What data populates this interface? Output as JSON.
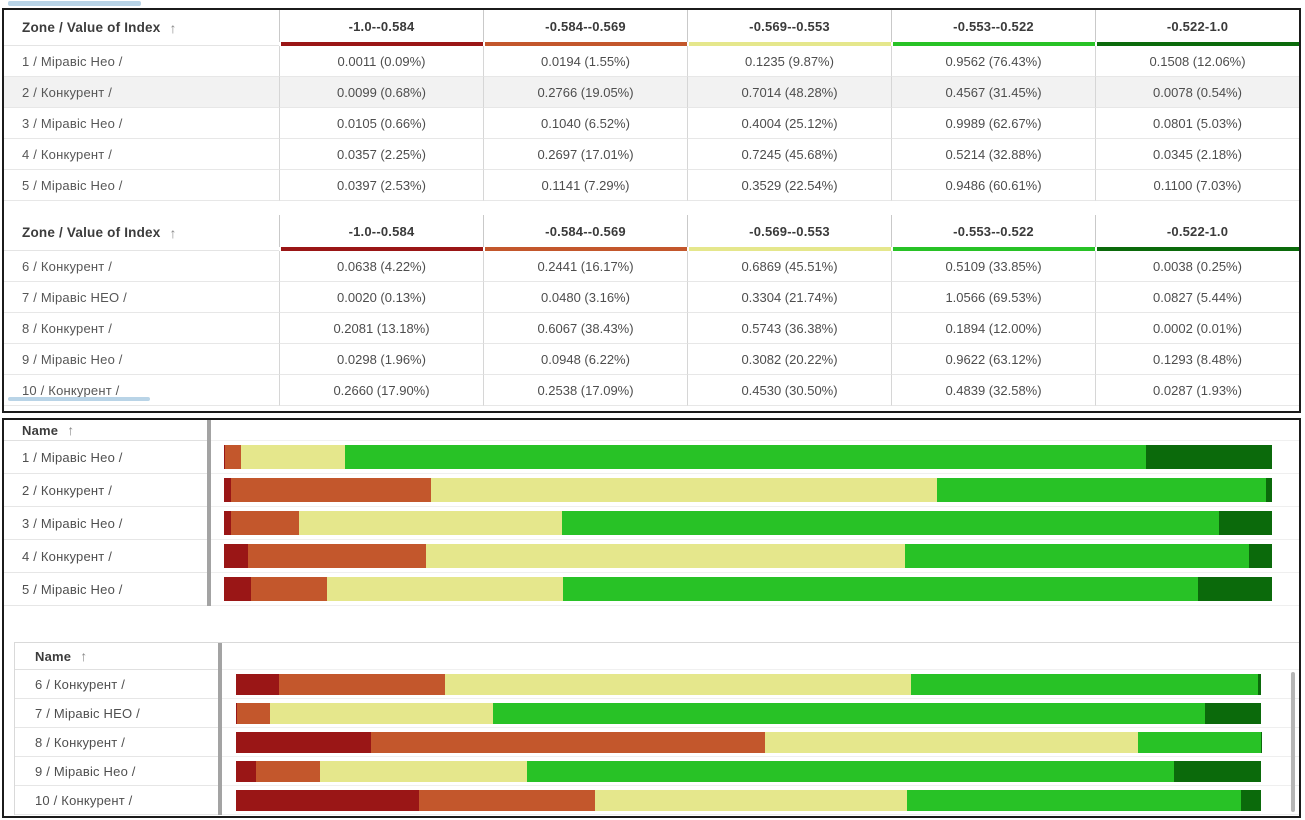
{
  "ui": {
    "sort_arrow": "↑"
  },
  "colors": {
    "panel_border": "#1b1b1b",
    "scrollbar_blue": "#b9d4e7",
    "splitter_gray": "#a3a3a3",
    "scrollbar_gray": "#b6b6b6",
    "shaded_row": "#f2f2f2"
  },
  "chart_data": {
    "type": "dashboard",
    "bins": [
      {
        "label": "-1.0--0.584",
        "color": "#9A1616"
      },
      {
        "label": "-0.584--0.569",
        "color": "#C3572C"
      },
      {
        "label": "-0.569--0.553",
        "color": "#E5E78C"
      },
      {
        "label": "-0.553--0.522",
        "color": "#28C226"
      },
      {
        "label": "-0.522-1.0",
        "color": "#0B6A0B"
      }
    ],
    "tables": [
      {
        "type": "table",
        "title": "Zone / Value of Index",
        "sort": "ascending",
        "rows": [
          {
            "name": "1 / Міравіс Нео /",
            "shaded": false,
            "cells": [
              "0.0011 (0.09%)",
              "0.0194 (1.55%)",
              "0.1235 (9.87%)",
              "0.9562 (76.43%)",
              "0.1508 (12.06%)"
            ],
            "percents": [
              0.09,
              1.55,
              9.87,
              76.43,
              12.06
            ]
          },
          {
            "name": "2 / Конкурент /",
            "shaded": true,
            "cells": [
              "0.0099 (0.68%)",
              "0.2766 (19.05%)",
              "0.7014 (48.28%)",
              "0.4567 (31.45%)",
              "0.0078 (0.54%)"
            ],
            "percents": [
              0.68,
              19.05,
              48.28,
              31.45,
              0.54
            ]
          },
          {
            "name": "3 / Міравіс Нео /",
            "shaded": false,
            "cells": [
              "0.0105 (0.66%)",
              "0.1040 (6.52%)",
              "0.4004 (25.12%)",
              "0.9989 (62.67%)",
              "0.0801 (5.03%)"
            ],
            "percents": [
              0.66,
              6.52,
              25.12,
              62.67,
              5.03
            ]
          },
          {
            "name": "4 / Конкурент /",
            "shaded": false,
            "cells": [
              "0.0357 (2.25%)",
              "0.2697 (17.01%)",
              "0.7245 (45.68%)",
              "0.5214 (32.88%)",
              "0.0345 (2.18%)"
            ],
            "percents": [
              2.25,
              17.01,
              45.68,
              32.88,
              2.18
            ]
          },
          {
            "name": "5 / Міравіс Нео /",
            "shaded": false,
            "cells": [
              "0.0397 (2.53%)",
              "0.1141 (7.29%)",
              "0.3529 (22.54%)",
              "0.9486 (60.61%)",
              "0.1100 (7.03%)"
            ],
            "percents": [
              2.53,
              7.29,
              22.54,
              60.61,
              7.03
            ]
          }
        ]
      },
      {
        "type": "table",
        "title": "Zone / Value of Index",
        "sort": "ascending",
        "rows": [
          {
            "name": "6 / Конкурент /",
            "shaded": false,
            "cells": [
              "0.0638 (4.22%)",
              "0.2441 (16.17%)",
              "0.6869 (45.51%)",
              "0.5109 (33.85%)",
              "0.0038 (0.25%)"
            ],
            "percents": [
              4.22,
              16.17,
              45.51,
              33.85,
              0.25
            ]
          },
          {
            "name": "7 / Міравіс НЕО /",
            "shaded": false,
            "cells": [
              "0.0020 (0.13%)",
              "0.0480 (3.16%)",
              "0.3304 (21.74%)",
              "1.0566 (69.53%)",
              "0.0827 (5.44%)"
            ],
            "percents": [
              0.13,
              3.16,
              21.74,
              69.53,
              5.44
            ]
          },
          {
            "name": "8 / Конкурент /",
            "shaded": false,
            "cells": [
              "0.2081 (13.18%)",
              "0.6067 (38.43%)",
              "0.5743 (36.38%)",
              "0.1894 (12.00%)",
              "0.0002 (0.01%)"
            ],
            "percents": [
              13.18,
              38.43,
              36.38,
              12.0,
              0.01
            ]
          },
          {
            "name": "9 / Міравіс Нео /",
            "shaded": false,
            "cells": [
              "0.0298 (1.96%)",
              "0.0948 (6.22%)",
              "0.3082 (20.22%)",
              "0.9622 (63.12%)",
              "0.1293 (8.48%)"
            ],
            "percents": [
              1.96,
              6.22,
              20.22,
              63.12,
              8.48
            ]
          },
          {
            "name": "10 / Конкурент /",
            "shaded": false,
            "cells": [
              "0.2660 (17.90%)",
              "0.2538 (17.09%)",
              "0.4530 (30.50%)",
              "0.4839 (32.58%)",
              "0.0287 (1.93%)"
            ],
            "percents": [
              17.9,
              17.09,
              30.5,
              32.58,
              1.93
            ]
          }
        ]
      }
    ],
    "bar_charts": [
      {
        "type": "stacked-bar-100pct",
        "title": "Name",
        "sort": "ascending",
        "rows": [
          {
            "name": "1 / Міравіс Нео /",
            "percents": [
              0.09,
              1.55,
              9.87,
              76.43,
              12.06
            ]
          },
          {
            "name": "2 / Конкурент /",
            "percents": [
              0.68,
              19.05,
              48.28,
              31.45,
              0.54
            ]
          },
          {
            "name": "3 / Міравіс Нео /",
            "percents": [
              0.66,
              6.52,
              25.12,
              62.67,
              5.03
            ]
          },
          {
            "name": "4 / Конкурент /",
            "percents": [
              2.25,
              17.01,
              45.68,
              32.88,
              2.18
            ]
          },
          {
            "name": "5 / Міравіс Нео /",
            "percents": [
              2.53,
              7.29,
              22.54,
              60.61,
              7.03
            ]
          }
        ]
      },
      {
        "type": "stacked-bar-100pct",
        "title": "Name",
        "sort": "ascending",
        "rows": [
          {
            "name": "6 / Конкурент /",
            "percents": [
              4.22,
              16.17,
              45.51,
              33.85,
              0.25
            ]
          },
          {
            "name": "7 / Міравіс НЕО /",
            "percents": [
              0.13,
              3.16,
              21.74,
              69.53,
              5.44
            ]
          },
          {
            "name": "8 / Конкурент /",
            "percents": [
              13.18,
              38.43,
              36.38,
              12.0,
              0.01
            ]
          },
          {
            "name": "9 / Міравіс Нео /",
            "percents": [
              1.96,
              6.22,
              20.22,
              63.12,
              8.48
            ]
          },
          {
            "name": "10 / Конкурент /",
            "percents": [
              17.9,
              17.09,
              30.5,
              32.58,
              1.93
            ]
          }
        ]
      }
    ]
  }
}
